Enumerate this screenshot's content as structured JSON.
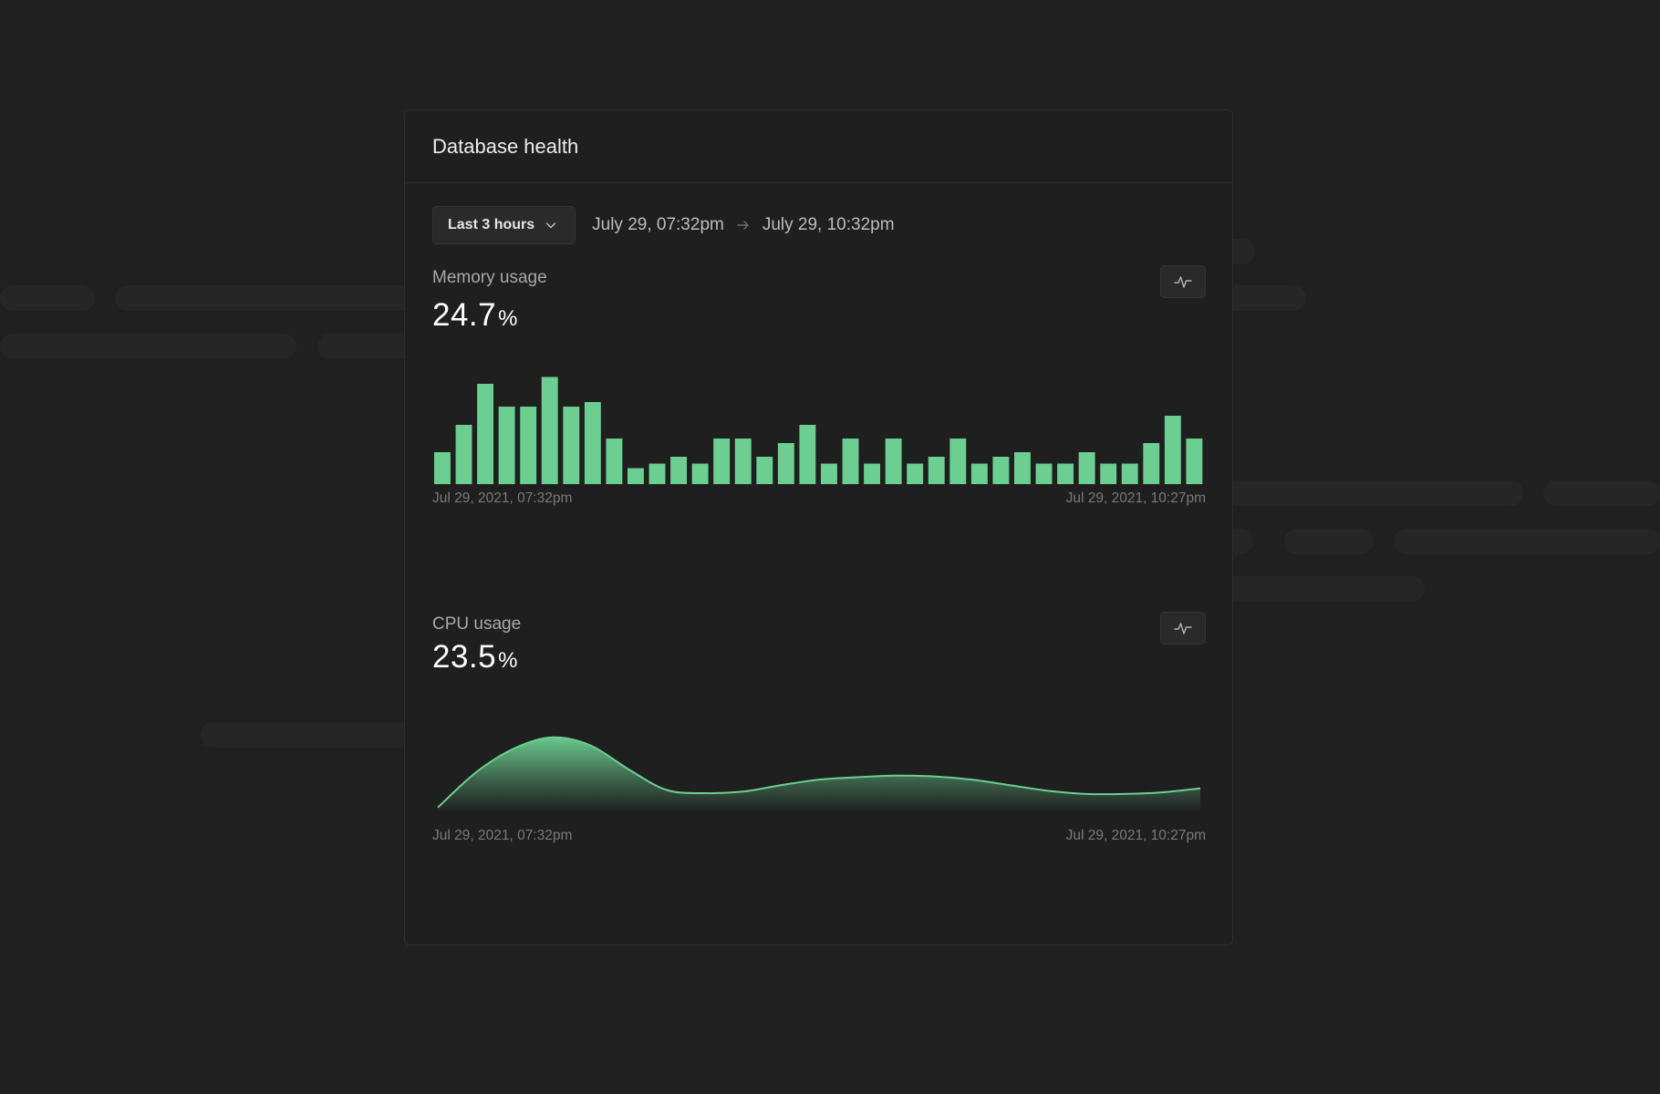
{
  "panel": {
    "title": "Database health"
  },
  "toolbar": {
    "range_label": "Last 3 hours",
    "range_icon": "chevron-down-icon",
    "date_from": "July 29, 07:32pm",
    "date_to": "July 29, 10:32pm",
    "separator_icon": "arrow-right-icon"
  },
  "memory": {
    "label": "Memory usage",
    "value": "24.7",
    "unit": "%",
    "toggle_icon": "activity-icon",
    "axis_start": "Jul 29, 2021, 07:32pm",
    "axis_end": "Jul 29, 2021, 10:27pm"
  },
  "cpu": {
    "label": "CPU usage",
    "value": "23.5",
    "unit": "%",
    "toggle_icon": "activity-icon",
    "axis_start": "Jul 29, 2021, 07:32pm",
    "axis_end": "Jul 29, 2021, 10:27pm"
  },
  "colors": {
    "accent": "#6ccf91",
    "background": "#202020",
    "panel": "#1f1f1f"
  },
  "chart_data": [
    {
      "type": "bar",
      "title": "Memory usage",
      "values": [
        7,
        13,
        22,
        17,
        17,
        23.5,
        17,
        18,
        10,
        3.5,
        4.5,
        6,
        4.5,
        10,
        10,
        6,
        9,
        13,
        4.5,
        10,
        4.5,
        10,
        4.5,
        6,
        10,
        4.5,
        6,
        7,
        4.5,
        4.5,
        7,
        4.5,
        4.5,
        9,
        15,
        10
      ],
      "ylim": [
        0,
        30
      ]
    },
    {
      "type": "area",
      "title": "CPU usage",
      "x": [
        0,
        1,
        2,
        3,
        4,
        5,
        6,
        7,
        8,
        9,
        10,
        11,
        12,
        13,
        14,
        15,
        16,
        17,
        18,
        19,
        20
      ],
      "values": [
        3,
        25,
        40,
        47,
        42,
        27,
        14,
        12,
        13,
        17,
        20.5,
        22,
        23,
        22.5,
        20.5,
        17,
        13.5,
        11.5,
        11.5,
        12.5,
        15
      ],
      "ylim": [
        0,
        60
      ]
    }
  ]
}
